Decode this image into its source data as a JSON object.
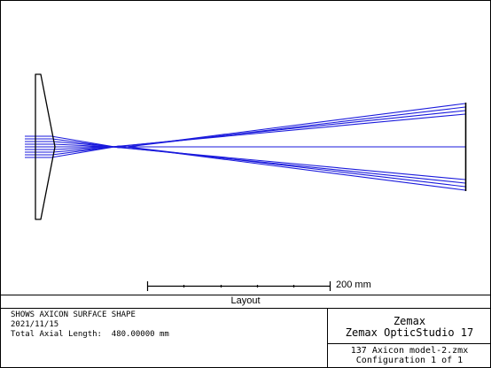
{
  "layout": {
    "panel_title": "Layout",
    "scale_bar_label": "200 mm",
    "colors": {
      "rays": "#1a1adc",
      "optics": "#000000",
      "background": "#ffffff"
    }
  },
  "info": {
    "description": "SHOWS AXICON SURFACE SHAPE",
    "date": "2021/11/15",
    "total_axial_length": "Total Axial Length:  480.00000 mm"
  },
  "brand": {
    "company": "Zemax",
    "product": "Zemax OpticStudio 17"
  },
  "file": {
    "name": "137 Axicon model-2.zmx",
    "configuration": "Configuration 1 of 1"
  }
}
